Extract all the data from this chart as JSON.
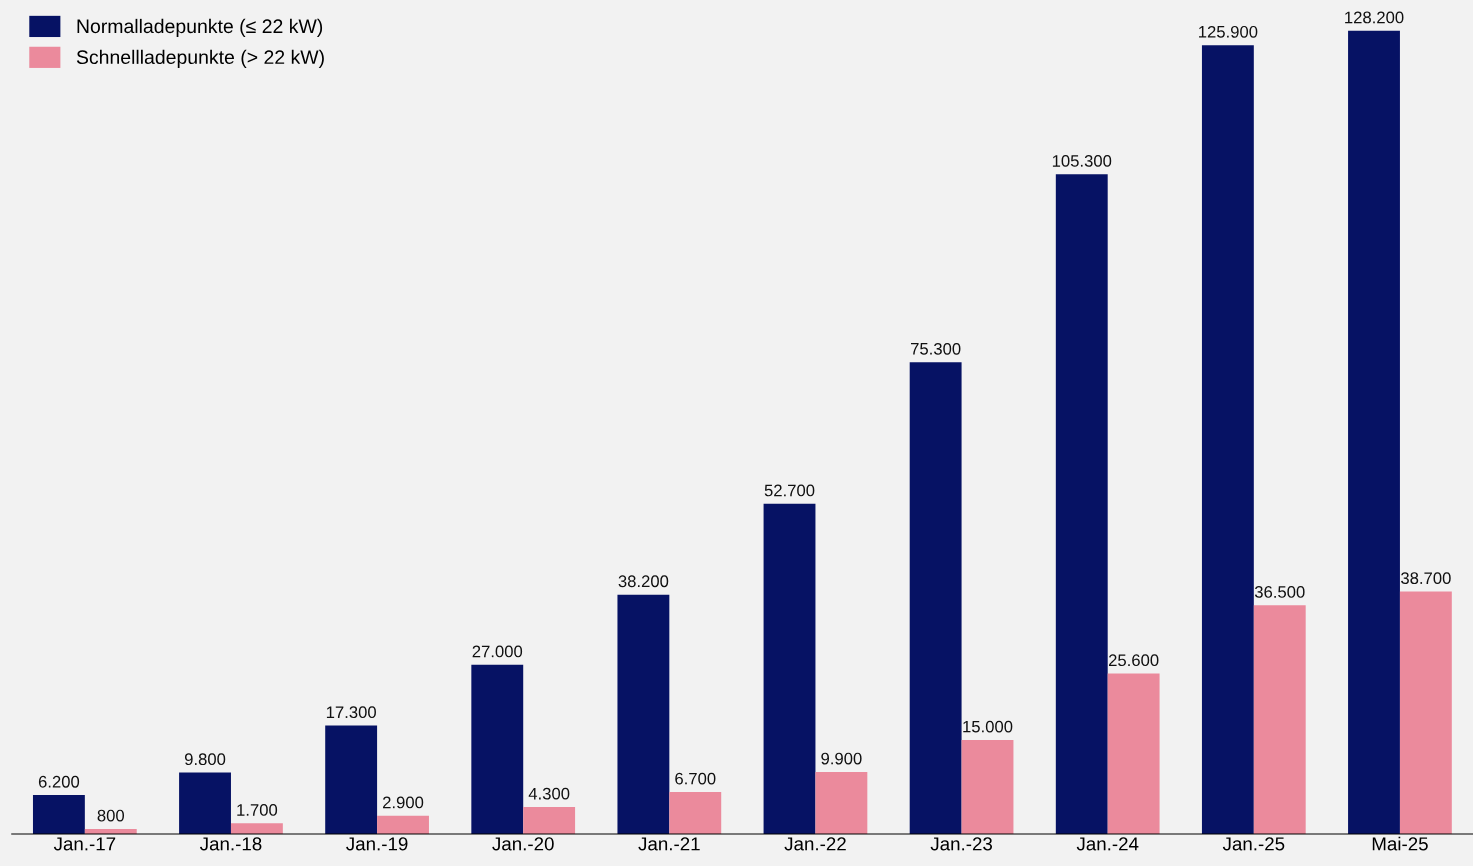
{
  "chart_data": {
    "type": "bar",
    "categories": [
      "Jan.-17",
      "Jan.-18",
      "Jan.-19",
      "Jan.-20",
      "Jan.-21",
      "Jan.-22",
      "Jan.-23",
      "Jan.-24",
      "Jan.-25",
      "Mai-25"
    ],
    "series": [
      {
        "name": "Normalladepunkte (≤ 22 kW)",
        "color": "#061264",
        "values": [
          6200,
          9800,
          17300,
          27000,
          38200,
          52700,
          75300,
          105300,
          125900,
          128200
        ],
        "value_labels": [
          "6.200",
          "9.800",
          "17.300",
          "27.000",
          "38.200",
          "52.700",
          "75.300",
          "105.300",
          "125.900",
          "128.200"
        ]
      },
      {
        "name": "Schnellladepunkte (> 22 kW)",
        "color": "#eb8a9c",
        "values": [
          800,
          1700,
          2900,
          4300,
          6700,
          9900,
          15000,
          25600,
          36500,
          38700
        ],
        "value_labels": [
          "800",
          "1.700",
          "2.900",
          "4.300",
          "6.700",
          "9.900",
          "15.000",
          "25.600",
          "36.500",
          "38.700"
        ]
      }
    ],
    "legend": "top left",
    "grid": false
  }
}
